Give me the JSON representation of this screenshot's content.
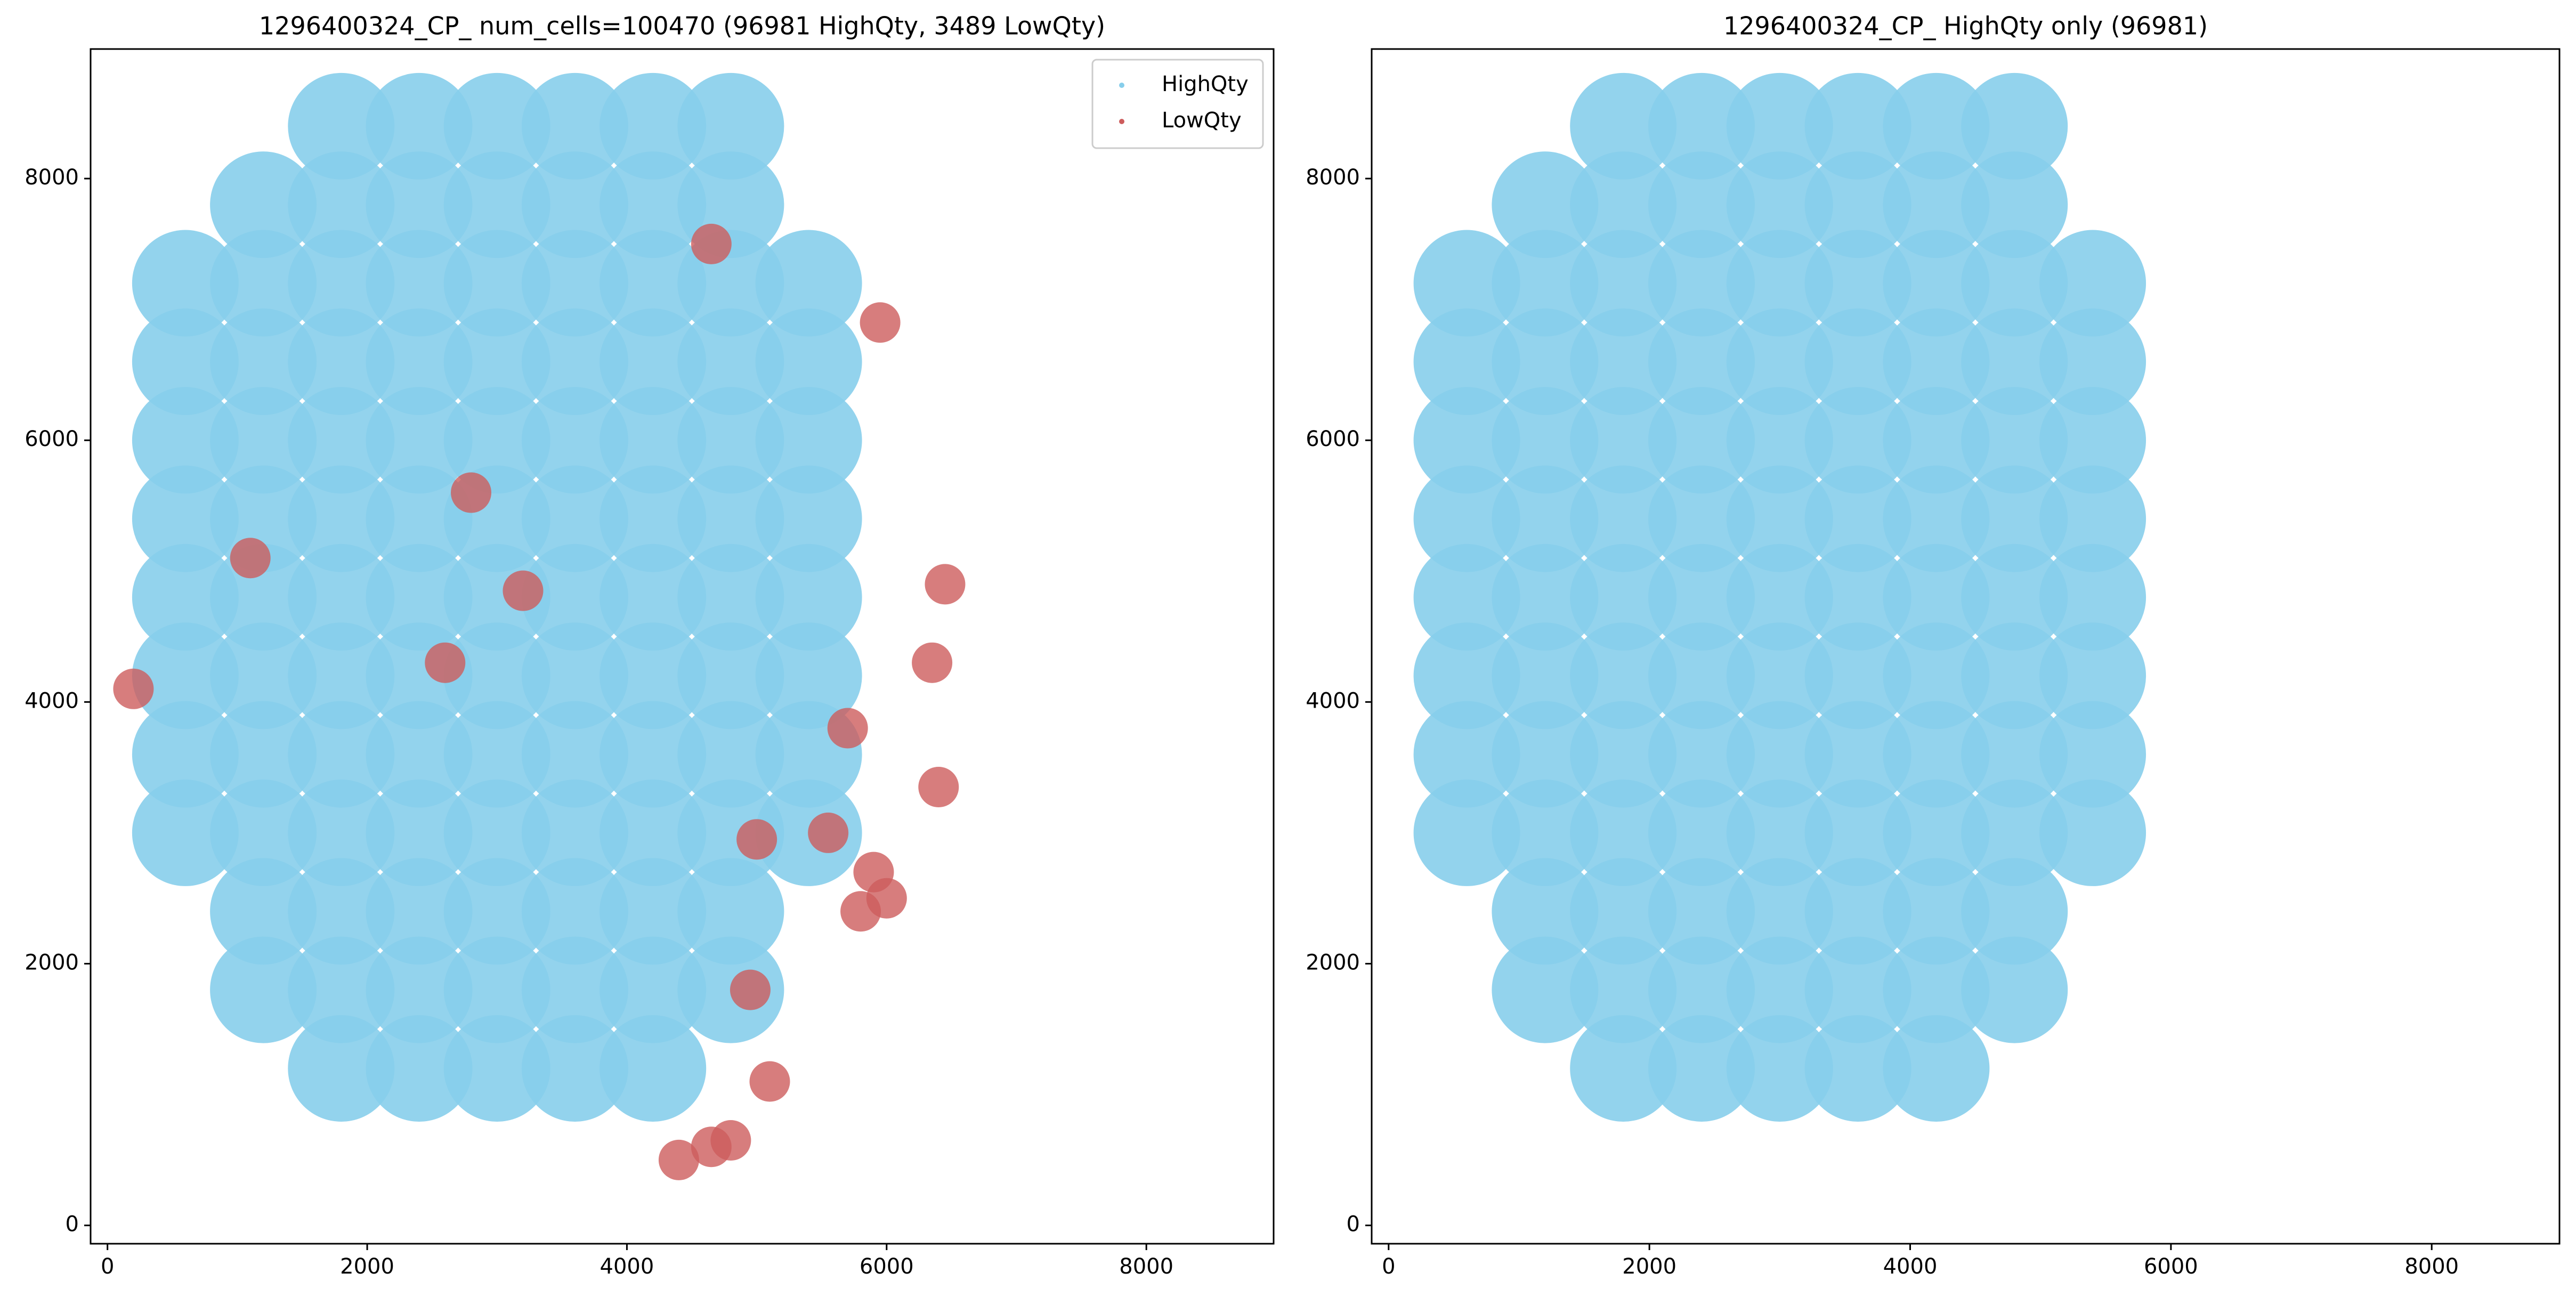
{
  "chart_data": [
    {
      "type": "scatter",
      "title": "1296400324_CP_ num_cells=100470 (96981 HighQty, 3489 LowQty)",
      "xlim": [
        -130,
        8980
      ],
      "ylim": [
        -140,
        8990
      ],
      "xticks": [
        0,
        2000,
        4000,
        6000,
        8000
      ],
      "yticks": [
        0,
        2000,
        4000,
        6000,
        8000
      ],
      "legend": "upper right",
      "series": [
        {
          "name": "HighQty",
          "color": "#87ceeb",
          "x": [
            1800,
            2400,
            3000,
            3600,
            4200,
            4800,
            1200,
            1800,
            2400,
            3000,
            3600,
            4200,
            4800,
            600,
            1200,
            1800,
            2400,
            3000,
            3600,
            4200,
            4800,
            5400,
            600,
            1200,
            1800,
            2400,
            3000,
            3600,
            4200,
            4800,
            5400,
            600,
            1200,
            1800,
            2400,
            3000,
            3600,
            4200,
            4800,
            5400,
            600,
            1200,
            1800,
            2400,
            3000,
            3600,
            4200,
            4800,
            5400,
            600,
            1200,
            1800,
            2400,
            3000,
            3600,
            4200,
            4800,
            5400,
            600,
            1200,
            1800,
            2400,
            3000,
            3600,
            4200,
            4800,
            5400,
            600,
            1200,
            1800,
            2400,
            3000,
            3600,
            4200,
            4800,
            5400,
            600,
            1200,
            1800,
            2400,
            3000,
            3600,
            4200,
            4800,
            5400,
            1200,
            1800,
            2400,
            3000,
            3600,
            4200,
            4800,
            1200,
            1800,
            2400,
            3000,
            3600,
            4200,
            4800,
            1800,
            2400,
            3000,
            3600,
            4200
          ],
          "y": [
            8400,
            8400,
            8400,
            8400,
            8400,
            8400,
            7800,
            7800,
            7800,
            7800,
            7800,
            7800,
            7800,
            7200,
            7200,
            7200,
            7200,
            7200,
            7200,
            7200,
            7200,
            7200,
            6600,
            6600,
            6600,
            6600,
            6600,
            6600,
            6600,
            6600,
            6600,
            6000,
            6000,
            6000,
            6000,
            6000,
            6000,
            6000,
            6000,
            6000,
            5400,
            5400,
            5400,
            5400,
            5400,
            5400,
            5400,
            5400,
            5400,
            4800,
            4800,
            4800,
            4800,
            4800,
            4800,
            4800,
            4800,
            4800,
            4200,
            4200,
            4200,
            4200,
            4200,
            4200,
            4200,
            4200,
            4200,
            3600,
            3600,
            3600,
            3600,
            3600,
            3600,
            3600,
            3600,
            3600,
            3000,
            3000,
            3000,
            3000,
            3000,
            3000,
            3000,
            3000,
            3000,
            2400,
            2400,
            2400,
            2400,
            2400,
            2400,
            2400,
            1800,
            1800,
            1800,
            1800,
            1800,
            1800,
            1800,
            1200,
            1200,
            1200,
            1200,
            1200
          ]
        },
        {
          "name": "LowQty",
          "color": "#cd5c5c",
          "x": [
            4650,
            4400,
            4800,
            5100,
            5800,
            6000,
            5900,
            6400,
            6350,
            6450,
            5950,
            4950,
            5700,
            5550,
            2800,
            3200,
            2600,
            4650,
            5000,
            1100,
            200
          ],
          "y": [
            600,
            500,
            650,
            1100,
            2400,
            2500,
            2700,
            3350,
            4300,
            4900,
            6900,
            1800,
            3800,
            3000,
            5600,
            4850,
            4300,
            7500,
            2950,
            5100,
            4100
          ]
        }
      ]
    },
    {
      "type": "scatter",
      "title": "1296400324_CP_ HighQty only (96981)",
      "xlim": [
        -130,
        8980
      ],
      "ylim": [
        -140,
        8990
      ],
      "xticks": [
        0,
        2000,
        4000,
        6000,
        8000
      ],
      "yticks": [
        0,
        2000,
        4000,
        6000,
        8000
      ],
      "series": [
        {
          "color": "#87ceeb",
          "x": [
            1800,
            2400,
            3000,
            3600,
            4200,
            4800,
            1200,
            1800,
            2400,
            3000,
            3600,
            4200,
            4800,
            600,
            1200,
            1800,
            2400,
            3000,
            3600,
            4200,
            4800,
            5400,
            600,
            1200,
            1800,
            2400,
            3000,
            3600,
            4200,
            4800,
            5400,
            600,
            1200,
            1800,
            2400,
            3000,
            3600,
            4200,
            4800,
            5400,
            600,
            1200,
            1800,
            2400,
            3000,
            3600,
            4200,
            4800,
            5400,
            600,
            1200,
            1800,
            2400,
            3000,
            3600,
            4200,
            4800,
            5400,
            600,
            1200,
            1800,
            2400,
            3000,
            3600,
            4200,
            4800,
            5400,
            600,
            1200,
            1800,
            2400,
            3000,
            3600,
            4200,
            4800,
            5400,
            600,
            1200,
            1800,
            2400,
            3000,
            3600,
            4200,
            4800,
            5400,
            1200,
            1800,
            2400,
            3000,
            3600,
            4200,
            4800,
            1200,
            1800,
            2400,
            3000,
            3600,
            4200,
            4800,
            1800,
            2400,
            3000,
            3600,
            4200
          ],
          "y": [
            8400,
            8400,
            8400,
            8400,
            8400,
            8400,
            7800,
            7800,
            7800,
            7800,
            7800,
            7800,
            7800,
            7200,
            7200,
            7200,
            7200,
            7200,
            7200,
            7200,
            7200,
            7200,
            6600,
            6600,
            6600,
            6600,
            6600,
            6600,
            6600,
            6600,
            6600,
            6000,
            6000,
            6000,
            6000,
            6000,
            6000,
            6000,
            6000,
            6000,
            5400,
            5400,
            5400,
            5400,
            5400,
            5400,
            5400,
            5400,
            5400,
            4800,
            4800,
            4800,
            4800,
            4800,
            4800,
            4800,
            4800,
            4800,
            4200,
            4200,
            4200,
            4200,
            4200,
            4200,
            4200,
            4200,
            4200,
            3600,
            3600,
            3600,
            3600,
            3600,
            3600,
            3600,
            3600,
            3600,
            3000,
            3000,
            3000,
            3000,
            3000,
            3000,
            3000,
            3000,
            3000,
            2400,
            2400,
            2400,
            2400,
            2400,
            2400,
            2400,
            1800,
            1800,
            1800,
            1800,
            1800,
            1800,
            1800,
            1200,
            1200,
            1200,
            1200,
            1200
          ]
        }
      ]
    }
  ]
}
